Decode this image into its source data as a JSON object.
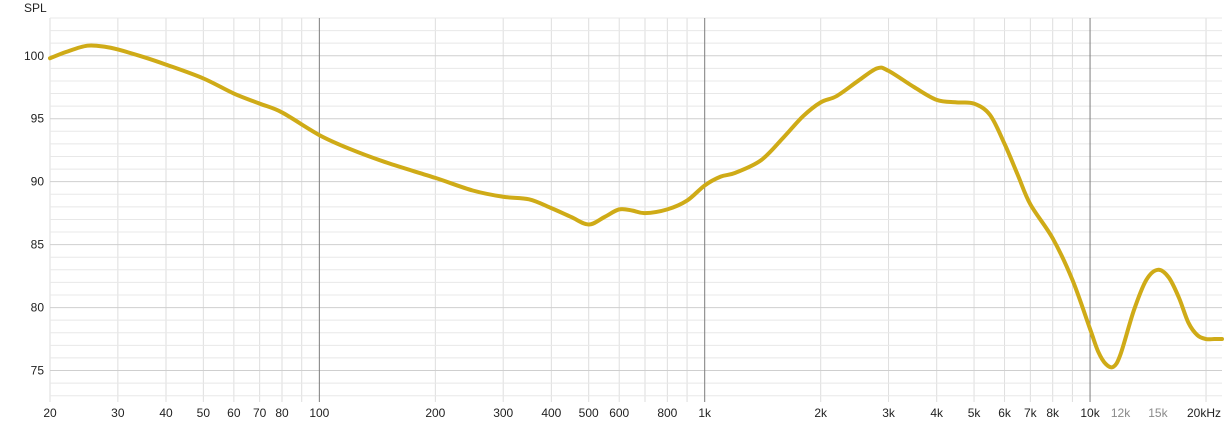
{
  "chart_data": {
    "type": "line",
    "ylabel": "SPL",
    "x_scale": "log",
    "xlim": [
      20,
      22000
    ],
    "ylim": [
      72.5,
      103
    ],
    "grid": true,
    "x_ticks": [
      {
        "value": 20,
        "label": "20"
      },
      {
        "value": 30,
        "label": "30"
      },
      {
        "value": 40,
        "label": "40"
      },
      {
        "value": 50,
        "label": "50"
      },
      {
        "value": 60,
        "label": "60"
      },
      {
        "value": 70,
        "label": "70"
      },
      {
        "value": 80,
        "label": "80"
      },
      {
        "value": 100,
        "label": "100"
      },
      {
        "value": 200,
        "label": "200"
      },
      {
        "value": 300,
        "label": "300"
      },
      {
        "value": 400,
        "label": "400"
      },
      {
        "value": 500,
        "label": "500"
      },
      {
        "value": 600,
        "label": "600"
      },
      {
        "value": 800,
        "label": "800"
      },
      {
        "value": 1000,
        "label": "1k"
      },
      {
        "value": 2000,
        "label": "2k"
      },
      {
        "value": 3000,
        "label": "3k"
      },
      {
        "value": 4000,
        "label": "4k"
      },
      {
        "value": 5000,
        "label": "5k"
      },
      {
        "value": 6000,
        "label": "6k"
      },
      {
        "value": 7000,
        "label": "7k"
      },
      {
        "value": 8000,
        "label": "8k"
      },
      {
        "value": 10000,
        "label": "10k"
      },
      {
        "value": 12000,
        "label": "12k",
        "minor": true
      },
      {
        "value": 15000,
        "label": "15k",
        "minor": true
      },
      {
        "value": 20000,
        "label": "20kHz"
      }
    ],
    "y_ticks": [
      75,
      80,
      85,
      90,
      95,
      100
    ],
    "series": [
      {
        "color": "#CFAB17",
        "x": [
          20,
          22,
          25,
          28,
          30,
          35,
          40,
          50,
          60,
          70,
          80,
          100,
          120,
          150,
          200,
          250,
          300,
          350,
          400,
          450,
          500,
          550,
          600,
          650,
          700,
          800,
          900,
          1000,
          1100,
          1200,
          1400,
          1600,
          1800,
          2000,
          2200,
          2500,
          2800,
          3000,
          3500,
          4000,
          4500,
          5000,
          5500,
          6000,
          6500,
          7000,
          8000,
          9000,
          10000,
          10500,
          11000,
          11500,
          12000,
          13000,
          14000,
          15000,
          16000,
          17000,
          18000,
          19000,
          20000,
          21000,
          22000
        ],
        "y": [
          99.8,
          100.3,
          100.8,
          100.7,
          100.5,
          99.9,
          99.3,
          98.2,
          97.0,
          96.2,
          95.5,
          93.7,
          92.6,
          91.5,
          90.3,
          89.3,
          88.8,
          88.6,
          87.9,
          87.2,
          86.6,
          87.2,
          87.8,
          87.7,
          87.5,
          87.8,
          88.5,
          89.7,
          90.4,
          90.7,
          91.7,
          93.5,
          95.2,
          96.3,
          96.8,
          98.0,
          99.0,
          98.8,
          97.5,
          96.5,
          96.3,
          96.2,
          95.3,
          93.0,
          90.5,
          88.2,
          85.5,
          82.2,
          78.3,
          76.5,
          75.5,
          75.3,
          76.3,
          79.8,
          82.2,
          83.0,
          82.4,
          80.8,
          78.8,
          77.8,
          77.5,
          77.5,
          77.5
        ]
      }
    ]
  }
}
